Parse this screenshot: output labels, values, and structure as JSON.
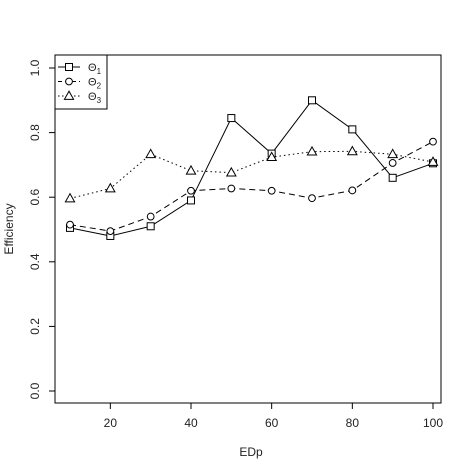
{
  "chart_data": {
    "type": "line",
    "title": "",
    "xlabel": "EDp",
    "ylabel": "Efficiency",
    "x": [
      10,
      20,
      30,
      40,
      50,
      60,
      70,
      80,
      90,
      100
    ],
    "xlim": [
      10,
      100
    ],
    "ylim": [
      0.0,
      1.0
    ],
    "x_ticks": [
      "20",
      "40",
      "60",
      "80",
      "100"
    ],
    "y_ticks": [
      "0.0",
      "0.2",
      "0.4",
      "0.6",
      "0.8",
      "1.0"
    ],
    "grid": false,
    "legend_position": "top-left",
    "series": [
      {
        "name": "Θ",
        "subscript": "1",
        "marker": "square",
        "line_style": "solid",
        "values": [
          0.505,
          0.48,
          0.51,
          0.59,
          0.845,
          0.735,
          0.9,
          0.81,
          0.66,
          0.705
        ]
      },
      {
        "name": "Θ",
        "subscript": "2",
        "marker": "circle",
        "line_style": "dashed",
        "values": [
          0.515,
          0.495,
          0.54,
          0.62,
          0.627,
          0.62,
          0.597,
          0.621,
          0.706,
          0.772
        ]
      },
      {
        "name": "Θ",
        "subscript": "3",
        "marker": "triangle",
        "line_style": "dotted",
        "values": [
          0.596,
          0.627,
          0.733,
          0.682,
          0.676,
          0.724,
          0.741,
          0.742,
          0.733,
          0.709
        ]
      }
    ]
  }
}
